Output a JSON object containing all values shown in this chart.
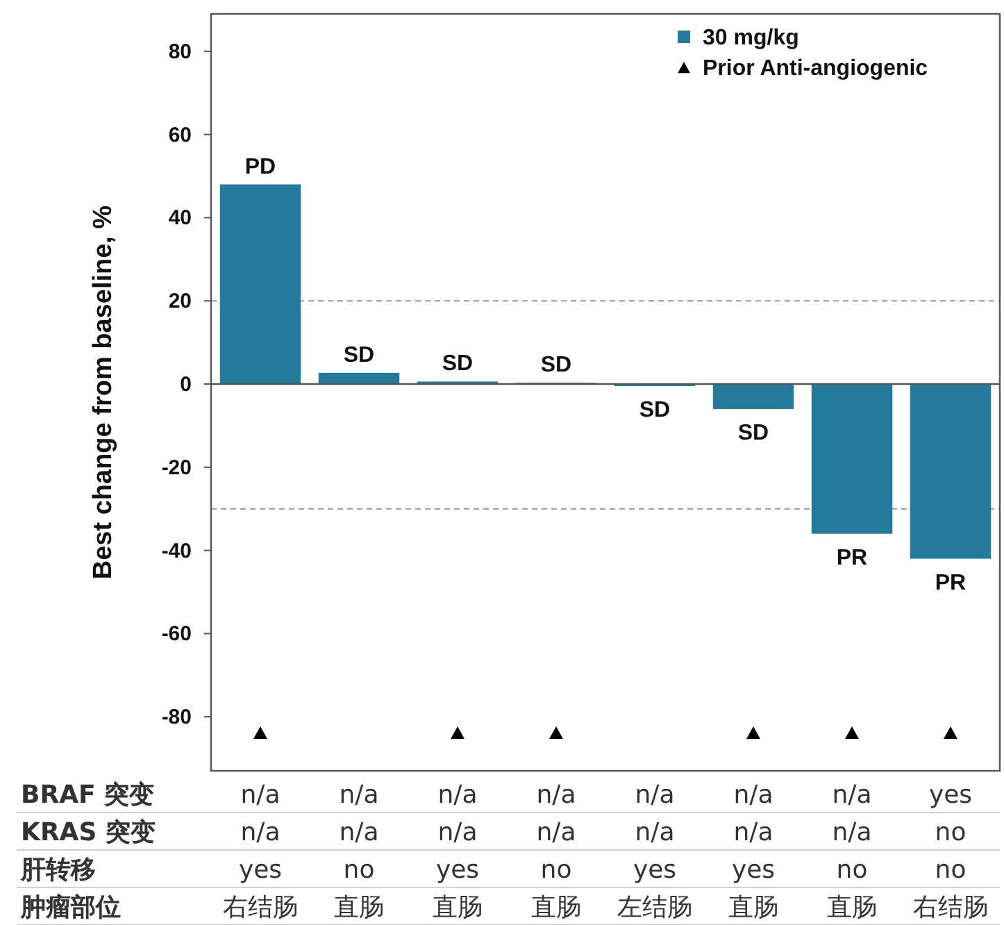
{
  "chart_data": {
    "type": "bar",
    "ylabel": "Best change from baseline, %",
    "categories": [
      null,
      null,
      null,
      null,
      null,
      null,
      null,
      null
    ],
    "series": [
      {
        "name": "30 mg/kg",
        "color": "#237b9b",
        "values": [
          48,
          2.7,
          0.6,
          0.3,
          -0.5,
          -6,
          -36,
          -42
        ],
        "value_labels": [
          "PD",
          "SD",
          "SD",
          "SD",
          "SD",
          "SD",
          "PR",
          "PR"
        ]
      },
      {
        "name": "Prior Anti-angiogenic",
        "type": "scatter",
        "color": "#000000",
        "marker": "triangle",
        "values": [
          -84,
          null,
          -84,
          -84,
          null,
          -84,
          -84,
          -84
        ]
      }
    ],
    "ylim": [
      -93,
      89
    ],
    "yticks": [
      -80,
      -60,
      -40,
      -20,
      0,
      20,
      40,
      60,
      80
    ],
    "ref_lines": [
      {
        "axis": "y",
        "value": 20,
        "color": "#999999",
        "line_style": "dashed"
      },
      {
        "axis": "y",
        "value": -30,
        "color": "#999999",
        "line_style": "dashed"
      }
    ],
    "legend": "top right",
    "annotations": [
      "BRAF 突变",
      "n/a",
      "n/a",
      "n/a",
      "n/a",
      "n/a",
      "n/a",
      "n/a",
      "yes",
      "KRAS 突变",
      "n/a",
      "n/a",
      "n/a",
      "n/a",
      "n/a",
      "n/a",
      "n/a",
      "no",
      "肝转移",
      "yes",
      "no",
      "yes",
      "no",
      "yes",
      "yes",
      "no",
      "no",
      "肿瘤部位",
      "右结肠",
      "直肠",
      "直肠",
      "直肠",
      "左结肠",
      "直肠",
      "直肠",
      "右结肠"
    ]
  }
}
